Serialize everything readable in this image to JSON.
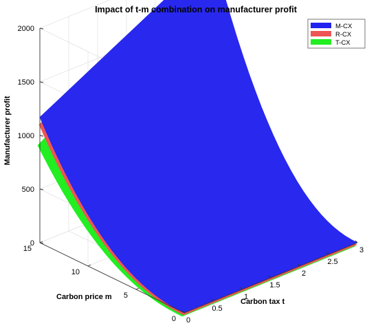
{
  "chart_data": {
    "type": "surface3d",
    "title": "Impact of t-m combination on manufacturer profit",
    "xlabel": "Carbon tax t",
    "ylabel": "Carbon price m",
    "zlabel": "Manufacturer profit",
    "xlim": [
      0,
      3
    ],
    "ylim": [
      0,
      15
    ],
    "zlim": [
      0,
      2000
    ],
    "x_ticks": [
      "0",
      "0.5",
      "1",
      "1.5",
      "2",
      "2.5",
      "3"
    ],
    "y_ticks": [
      "0",
      "5",
      "10",
      "15"
    ],
    "z_ticks": [
      "0",
      "500",
      "1000",
      "1500",
      "2000"
    ],
    "grid": true,
    "legend_position": "top-right",
    "series": [
      {
        "name": "M-CX",
        "color": "#2222ee",
        "corners": [
          {
            "t": 0,
            "m": 0,
            "profit": 0
          },
          {
            "t": 3,
            "m": 0,
            "profit": 0
          },
          {
            "t": 0,
            "m": 15,
            "profit": 1170
          },
          {
            "t": 3,
            "m": 15,
            "profit": 2040
          }
        ]
      },
      {
        "name": "R-CX",
        "color": "#ee5555",
        "corners": [
          {
            "t": 0,
            "m": 0,
            "profit": 0
          },
          {
            "t": 3,
            "m": 0,
            "profit": 0
          },
          {
            "t": 0,
            "m": 15,
            "profit": 1120
          },
          {
            "t": 3,
            "m": 15,
            "profit": 2000
          }
        ]
      },
      {
        "name": "T-CX",
        "color": "#22ee22",
        "corners": [
          {
            "t": 0,
            "m": 0,
            "profit": 0
          },
          {
            "t": 3,
            "m": 0,
            "profit": 0
          },
          {
            "t": 0,
            "m": 15,
            "profit": 940
          },
          {
            "t": 3,
            "m": 15,
            "profit": 1950
          }
        ]
      }
    ]
  }
}
